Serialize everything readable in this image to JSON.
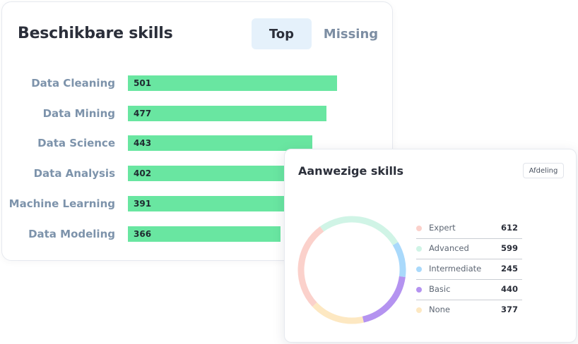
{
  "skills_card": {
    "title": "Beschikbare skills",
    "tabs": [
      {
        "label": "Top",
        "active": true
      },
      {
        "label": "Missing",
        "active": false
      }
    ]
  },
  "present_card": {
    "title": "Aanwezige skills",
    "filter_label": "Afdeling"
  },
  "colors": {
    "bar": "#69e6a1",
    "expert": "#fbd1cb",
    "advanced": "#d0f4e6",
    "intermediate": "#a9d9fb",
    "basic": "#b493f0",
    "none": "#fde8c2"
  },
  "chart_data": [
    {
      "type": "bar",
      "orientation": "horizontal",
      "title": "Beschikbare skills",
      "categories": [
        "Data Cleaning",
        "Data Mining",
        "Data Science",
        "Data Analysis",
        "Machine Learning",
        "Data Modeling"
      ],
      "values": [
        501,
        477,
        443,
        402,
        391,
        366
      ],
      "xlim": [
        0,
        600
      ],
      "grid": false
    },
    {
      "type": "pie",
      "style": "donut",
      "title": "Aanwezige skills",
      "categories": [
        "Expert",
        "Advanced",
        "Intermediate",
        "Basic",
        "None"
      ],
      "values": [
        612,
        599,
        245,
        440,
        377
      ],
      "legend": "right"
    }
  ]
}
